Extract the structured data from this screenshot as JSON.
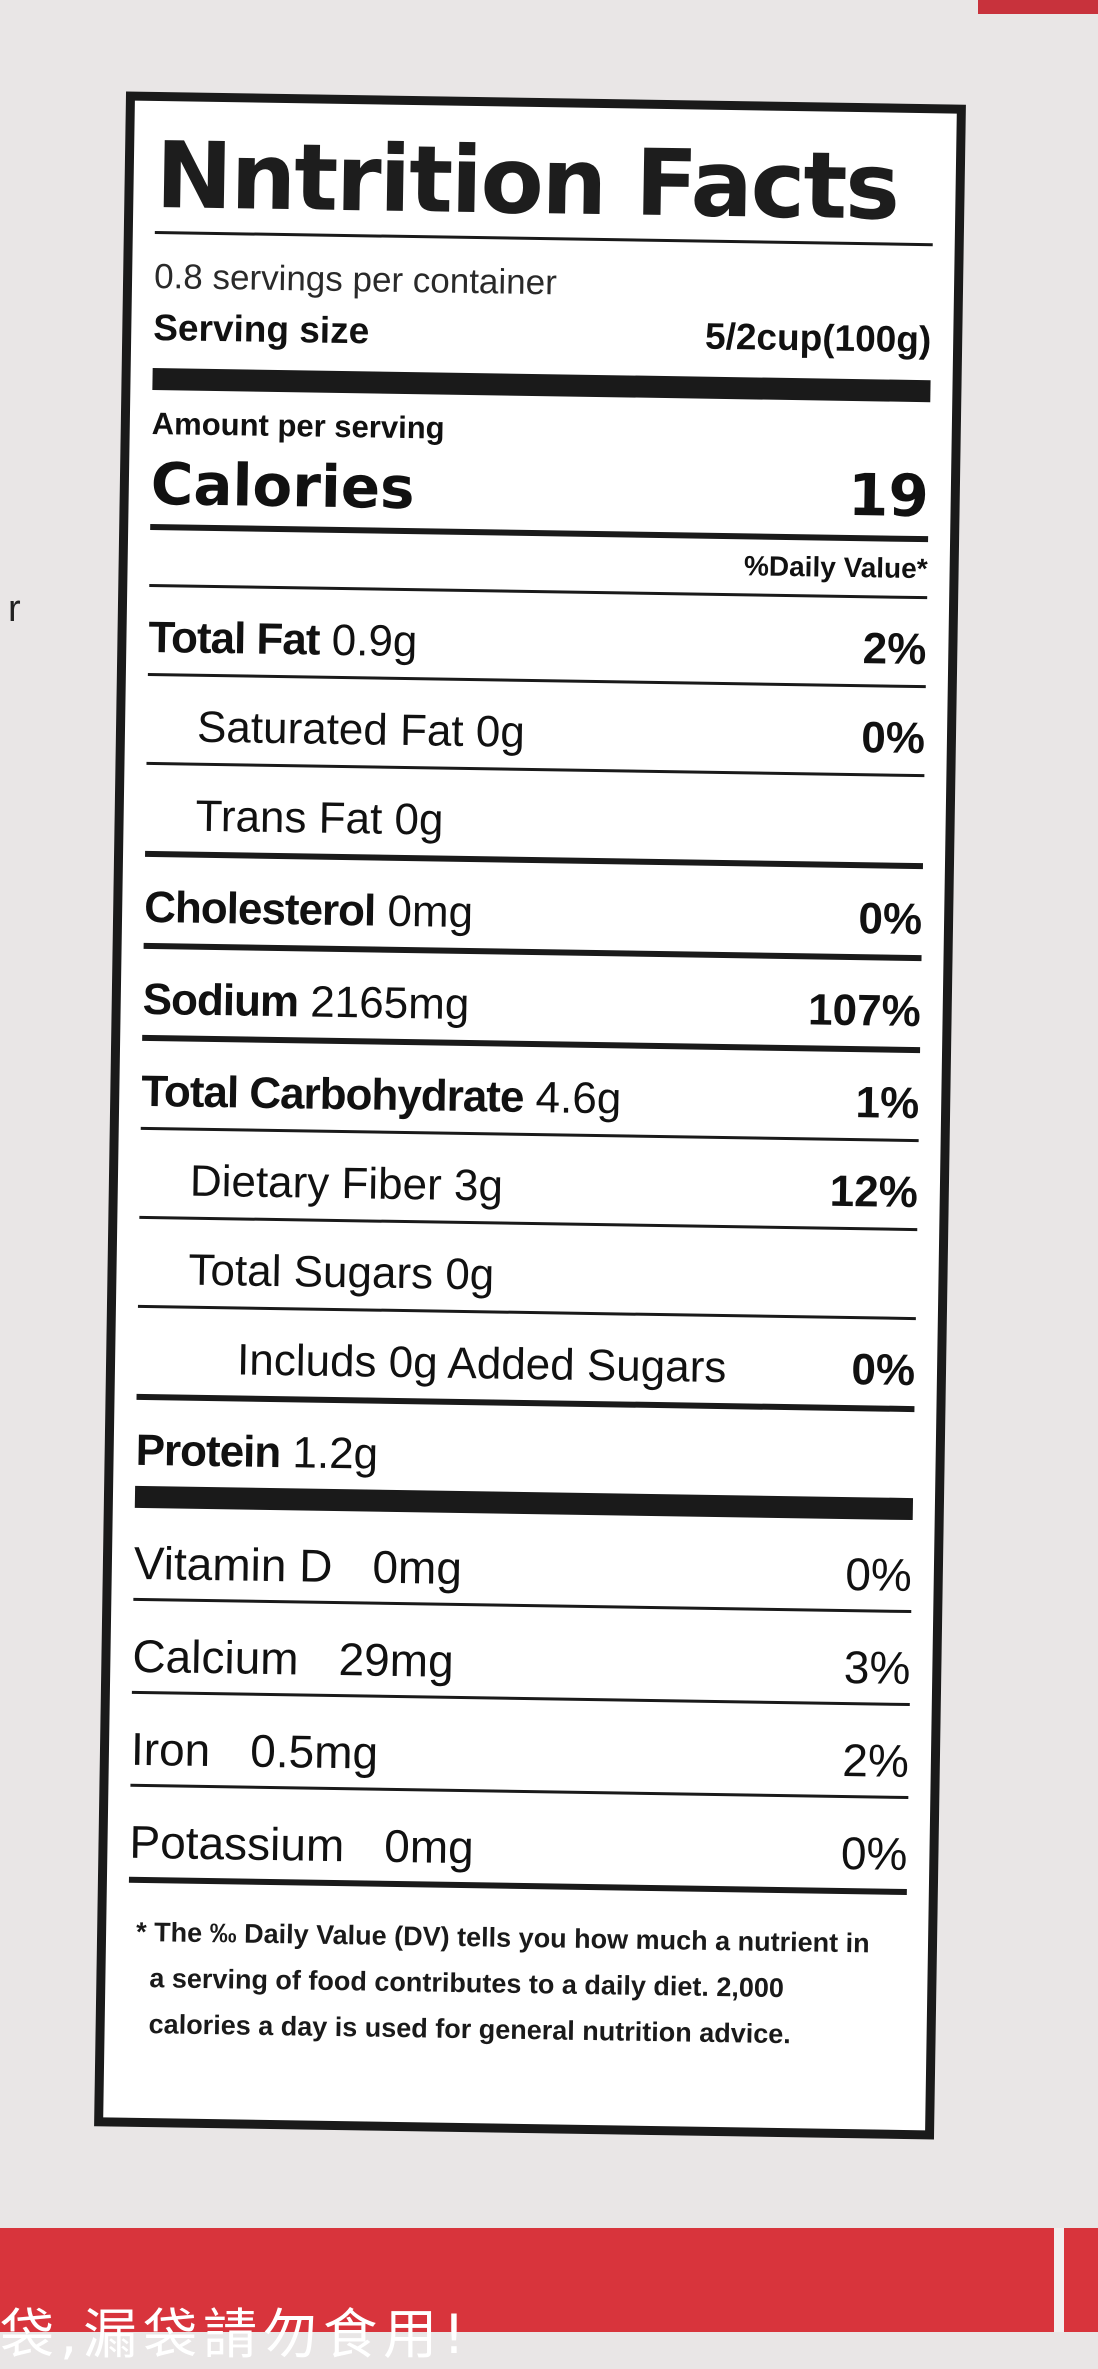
{
  "label": {
    "title": "Nntrition Facts",
    "servings_per_container": "0.8 servings per container",
    "serving_size_label": "Serving size",
    "serving_size_value": "5/2cup(100g)",
    "amount_per_serving": "Amount per serving",
    "calories_label": "Calories",
    "calories_value": "19",
    "daily_value_header": "%Daily Value*",
    "nutrients": [
      {
        "name": "Total Fat",
        "amount": "0.9g",
        "dv": "2%"
      },
      {
        "name": "Saturated Fat",
        "amount": "0g",
        "dv": "0%"
      },
      {
        "name": "Trans Fat",
        "amount": "0g",
        "dv": ""
      },
      {
        "name": "Cholesterol",
        "amount": "0mg",
        "dv": "0%"
      },
      {
        "name": "Sodium",
        "amount": "2165mg",
        "dv": "107%"
      },
      {
        "name": "Total Carbohydrate",
        "amount": "4.6g",
        "dv": "1%"
      },
      {
        "name": "Dietary Fiber",
        "amount": "3g",
        "dv": "12%"
      },
      {
        "name": "Total Sugars",
        "amount": "0g",
        "dv": ""
      },
      {
        "name": "Includs",
        "amount": "0g Added Sugars",
        "dv": "0%"
      },
      {
        "name": "Protein",
        "amount": "1.2g",
        "dv": ""
      }
    ],
    "vitamins": [
      {
        "name": "Vitamin D",
        "amount": "0mg",
        "dv": "0%"
      },
      {
        "name": "Calcium",
        "amount": "29mg",
        "dv": "3%"
      },
      {
        "name": "Iron",
        "amount": "0.5mg",
        "dv": "2%"
      },
      {
        "name": "Potassium",
        "amount": "0mg",
        "dv": "0%"
      }
    ],
    "footnote": [
      "* The  ‰ Daily Value (DV) tells you how much a nutrient in",
      "a serving of  food  contributes to a daily diet. 2,000",
      "calories a day is used for general  nutrition  advice."
    ]
  },
  "background": {
    "stray_char": "r",
    "bottom_banner_text": "袋,漏袋請勿食用!"
  }
}
